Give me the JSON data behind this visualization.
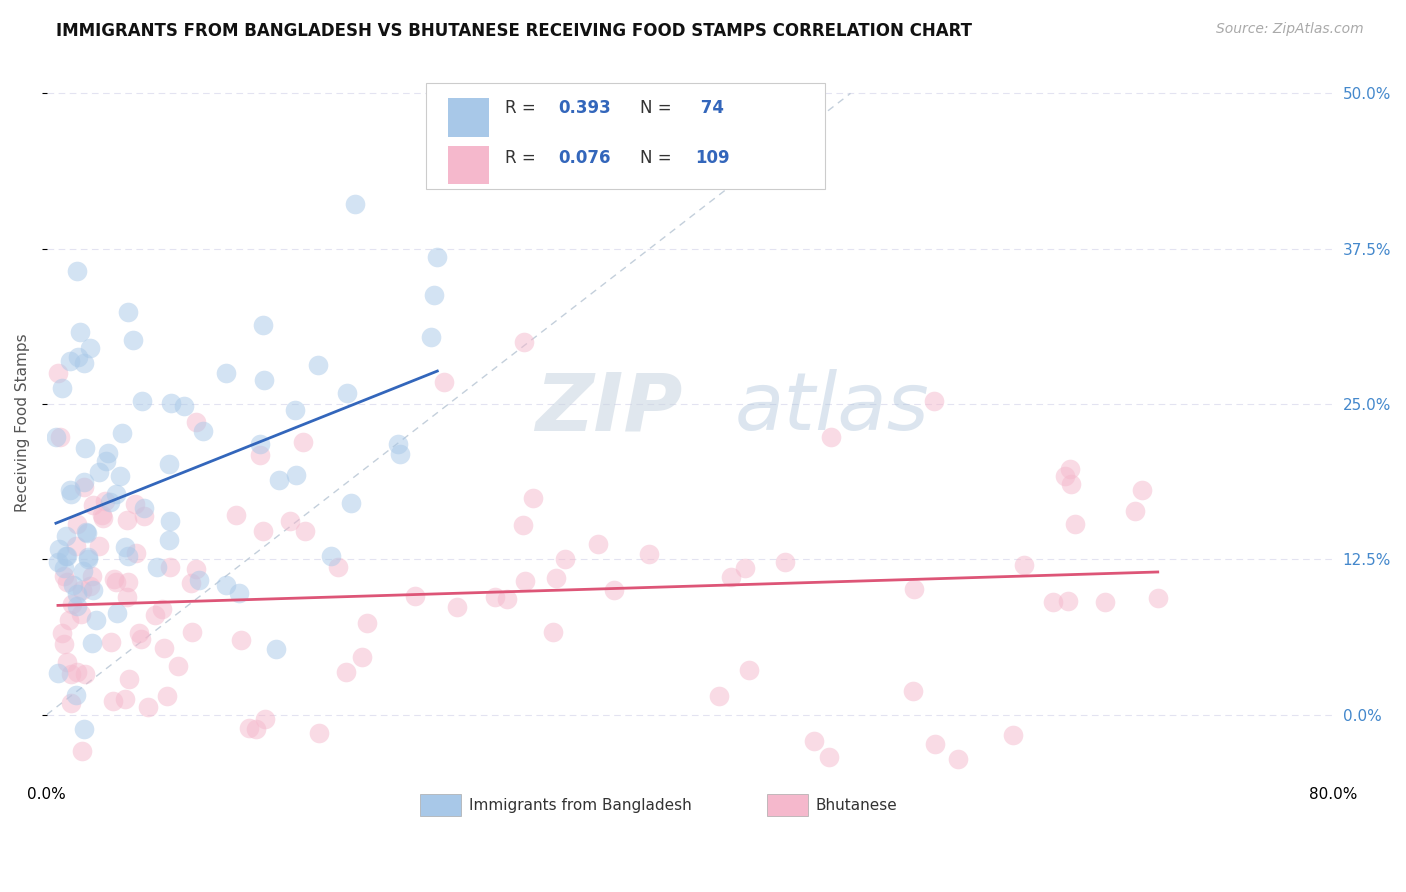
{
  "title": "IMMIGRANTS FROM BANGLADESH VS BHUTANESE RECEIVING FOOD STAMPS CORRELATION CHART",
  "source": "Source: ZipAtlas.com",
  "ylabel": "Receiving Food Stamps",
  "xlim": [
    0.0,
    80.0
  ],
  "ylim": [
    -5.0,
    52.0
  ],
  "yticks": [
    0.0,
    12.5,
    25.0,
    37.5,
    50.0
  ],
  "ytick_labels": [
    "0.0%",
    "12.5%",
    "25.0%",
    "37.5%",
    "50.0%"
  ],
  "xtick_labels": [
    "0.0%",
    "80.0%"
  ],
  "R_blue": 0.393,
  "N_blue": 74,
  "R_pink": 0.076,
  "N_pink": 109,
  "color_blue_scatter": "#a8c8e8",
  "color_pink_scatter": "#f5b8cc",
  "color_blue_line": "#3366bb",
  "color_pink_line": "#dd5577",
  "color_diag": "#aabbcc",
  "color_grid": "#ddddee",
  "color_ytick": "#4488cc",
  "watermark_zip": "ZIP",
  "watermark_atlas": "atlas",
  "legend_label_blue": "Immigrants from Bangladesh",
  "legend_label_pink": "Bhutanese",
  "title_fontsize": 12,
  "tick_fontsize": 11,
  "ylabel_fontsize": 11
}
